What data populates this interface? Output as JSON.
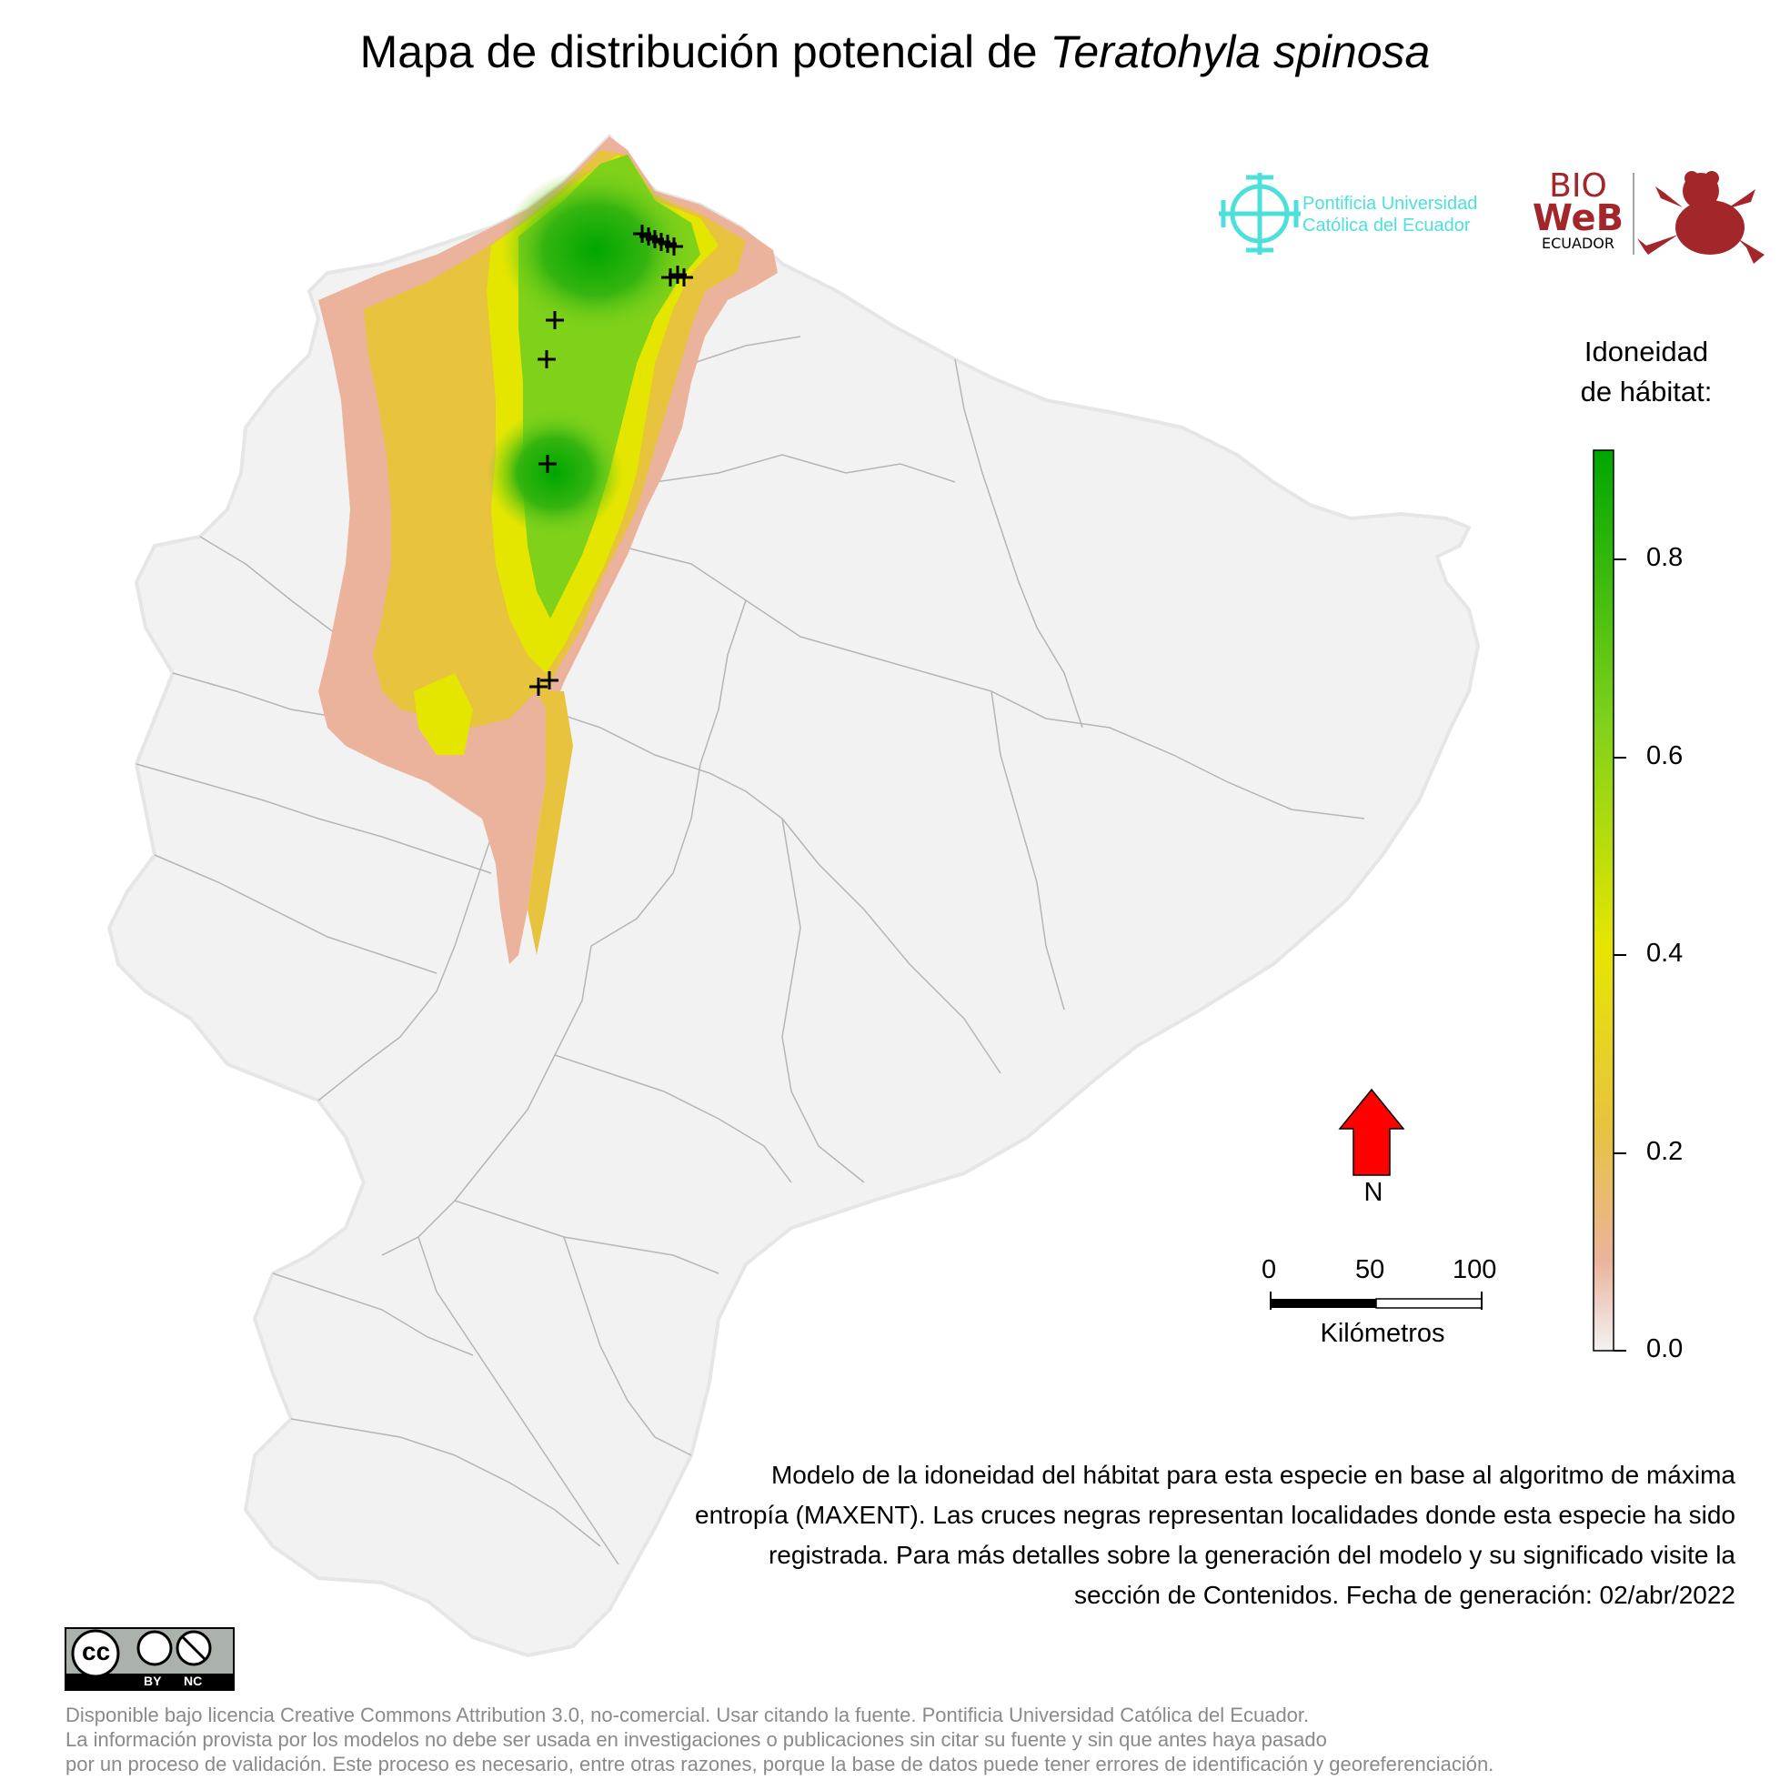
{
  "title": {
    "prefix": "Mapa de distribución potencial de ",
    "species": "Teratohyla spinosa"
  },
  "legend": {
    "title_line1": "Idoneidad",
    "title_line2": "de hábitat:",
    "ticks": [
      "0.0",
      "0.2",
      "0.4",
      "0.6",
      "0.8"
    ],
    "range": [
      0,
      0.9
    ],
    "gradient_colors": [
      "#f2f2f2",
      "#ebb39c",
      "#e8c33e",
      "#e5e600",
      "#7fd11a",
      "#00a600"
    ]
  },
  "north_arrow": {
    "label": "N",
    "color": "#ff0000"
  },
  "scale_bar": {
    "labels": [
      "0",
      "50",
      "100"
    ],
    "unit": "Kilómetros"
  },
  "caption": "Modelo de la idoneidad del hábitat para esta especie en base al algoritmo de máxima entropía (MAXENT). Las cruces negras representan localidades donde esta especie ha sido registrada. Para más detalles sobre la generación del modelo y su significado visite la sección de Contenidos. Fecha de generación: 02/abr/2022",
  "logos": {
    "puce_line1": "Pontificia Universidad",
    "puce_line2": "Católica del Ecuador",
    "bioweb_line1": "BIO",
    "bioweb_line2": "WeB",
    "bioweb_line3": "ECUADOR",
    "bioweb_color": "#a3262b",
    "puce_color": "#4de0db"
  },
  "license_badge": {
    "main": "cc",
    "by": "BY",
    "nc": "NC"
  },
  "footer": {
    "line1": "Disponible bajo licencia Creative Commons Attribution 3.0, no-comercial. Usar citando la fuente. Pontificia Universidad Católica del Ecuador.",
    "line2": "La información provista por los modelos no debe ser usada en investigaciones o publicaciones sin citar su fuente y sin que antes haya pasado",
    "line3": "por un proceso de validación. Este proceso es necesario, entre otras razones, porque la base de datos puede tener errores de identificación y georeferenciación."
  },
  "records_marker": "+",
  "record_count_visible": 14
}
